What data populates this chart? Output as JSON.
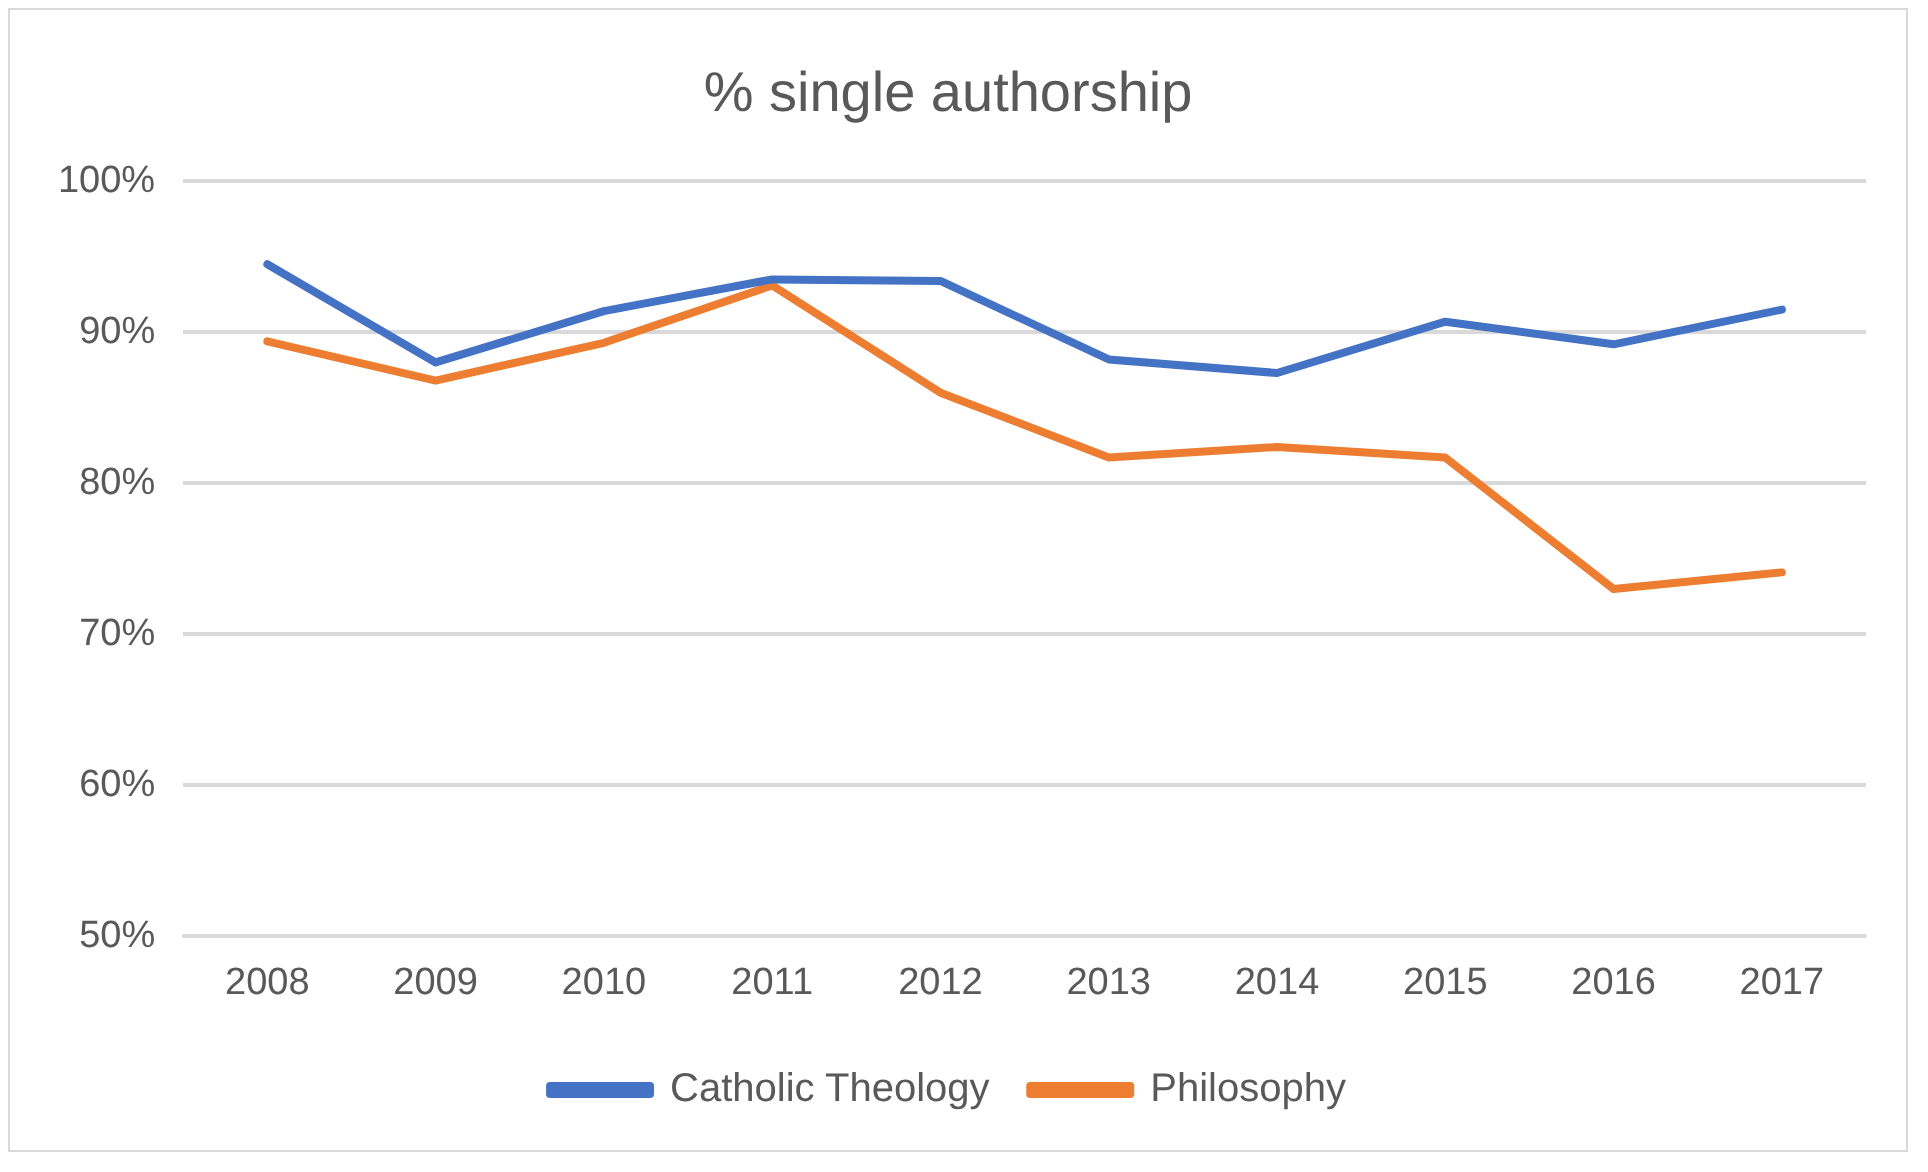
{
  "chart_data": {
    "type": "line",
    "title": "% single authorship",
    "categories": [
      "2008",
      "2009",
      "2010",
      "2011",
      "2012",
      "2013",
      "2014",
      "2015",
      "2016",
      "2017"
    ],
    "series": [
      {
        "name": "Catholic Theology",
        "color": "#4472c4",
        "values": [
          94.5,
          88.0,
          91.4,
          93.5,
          93.4,
          88.2,
          87.3,
          90.7,
          89.2,
          91.5
        ]
      },
      {
        "name": "Philosophy",
        "color": "#ed7d31",
        "values": [
          89.4,
          86.8,
          89.3,
          93.1,
          86.0,
          81.7,
          82.4,
          81.7,
          73.0,
          74.1
        ]
      }
    ],
    "ylim": [
      50,
      100
    ],
    "yticks": [
      {
        "value": 50,
        "label": "50%"
      },
      {
        "value": 60,
        "label": "60%"
      },
      {
        "value": 70,
        "label": "70%"
      },
      {
        "value": 80,
        "label": "80%"
      },
      {
        "value": 90,
        "label": "90%"
      },
      {
        "value": 100,
        "label": "100%"
      }
    ],
    "grid": "y",
    "legend": "bottom",
    "marker": "none",
    "line_style": "solid"
  }
}
